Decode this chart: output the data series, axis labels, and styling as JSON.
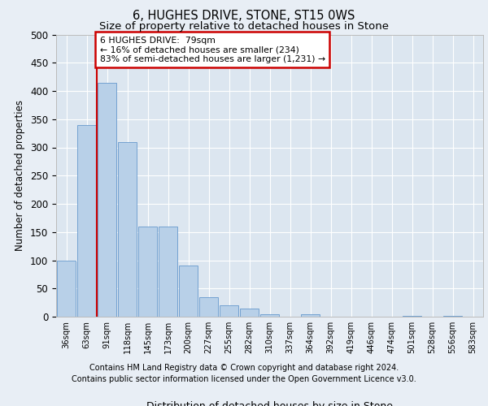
{
  "title1": "6, HUGHES DRIVE, STONE, ST15 0WS",
  "title2": "Size of property relative to detached houses in Stone",
  "xlabel": "Distribution of detached houses by size in Stone",
  "ylabel": "Number of detached properties",
  "bins": [
    "36sqm",
    "63sqm",
    "91sqm",
    "118sqm",
    "145sqm",
    "173sqm",
    "200sqm",
    "227sqm",
    "255sqm",
    "282sqm",
    "310sqm",
    "337sqm",
    "364sqm",
    "392sqm",
    "419sqm",
    "446sqm",
    "474sqm",
    "501sqm",
    "528sqm",
    "556sqm",
    "583sqm"
  ],
  "values": [
    100,
    340,
    415,
    310,
    160,
    160,
    90,
    35,
    20,
    15,
    5,
    0,
    5,
    0,
    0,
    0,
    0,
    2,
    0,
    2,
    0
  ],
  "bar_color": "#b8d0e8",
  "bar_edge_color": "#6699cc",
  "vline_color": "#cc0000",
  "annotation_text": "6 HUGHES DRIVE:  79sqm\n← 16% of detached houses are smaller (234)\n83% of semi-detached houses are larger (1,231) →",
  "annotation_box_color": "#ffffff",
  "annotation_box_edge": "#cc0000",
  "footer1": "Contains HM Land Registry data © Crown copyright and database right 2024.",
  "footer2": "Contains public sector information licensed under the Open Government Licence v3.0.",
  "ylim": [
    0,
    500
  ],
  "bg_color": "#e8eef5",
  "plot_bg": "#dce6f0"
}
